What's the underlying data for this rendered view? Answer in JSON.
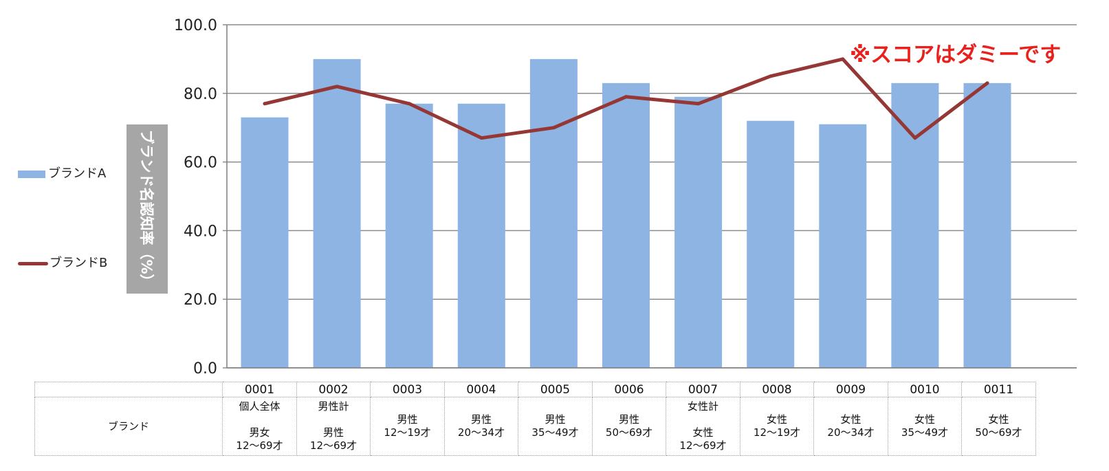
{
  "note": "※スコアはダミーです",
  "legend": {
    "series_a": "ブランドA",
    "series_b": "ブランドB"
  },
  "table": {
    "row_header": "ブランド",
    "codes": [
      "0001",
      "0002",
      "0003",
      "0004",
      "0005",
      "0006",
      "0007",
      "0008",
      "0009",
      "0010",
      "0011"
    ],
    "labels": [
      "個人全体\n\n男女\n12〜69才",
      "男性計\n\n男性\n12〜69才",
      "男性\n12〜19才",
      "男性\n20〜34才",
      "男性\n35〜49才",
      "男性\n50〜69才",
      "女性計\n\n女性\n12〜69才",
      "女性\n12〜19才",
      "女性\n20〜34才",
      "女性\n35〜49才",
      "女性\n50〜69才"
    ]
  },
  "chart_data": {
    "type": "bar",
    "title": "",
    "xlabel": "",
    "ylabel": "ブランド名認知率（%）",
    "ylim": [
      0,
      100
    ],
    "yticks": [
      "0.0",
      "20.0",
      "40.0",
      "60.0",
      "80.0",
      "100.0"
    ],
    "grid": true,
    "legend_position": "left",
    "categories": [
      "0001",
      "0002",
      "0003",
      "0004",
      "0005",
      "0006",
      "0007",
      "0008",
      "0009",
      "0010",
      "0011"
    ],
    "series": [
      {
        "name": "ブランドA",
        "type": "bar",
        "color": "#8eb4e3",
        "values": [
          73,
          90,
          77,
          77,
          90,
          83,
          79,
          72,
          71,
          83,
          83
        ]
      },
      {
        "name": "ブランドB",
        "type": "line",
        "color": "#953735",
        "values": [
          77,
          82,
          77,
          67,
          70,
          79,
          77,
          85,
          90,
          67,
          83
        ]
      }
    ]
  }
}
